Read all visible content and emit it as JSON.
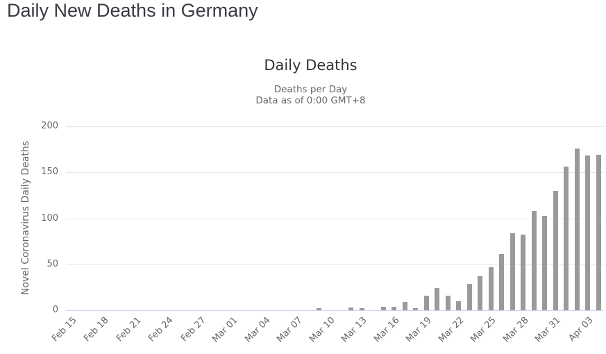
{
  "page": {
    "title": "Daily New Deaths in Germany"
  },
  "chart": {
    "title": "Daily Deaths",
    "subtitle_line1": "Deaths per Day",
    "subtitle_line2": "Data as of 0:00 GMT+8",
    "y_axis_title": "Novel Coronavirus Daily Deaths"
  },
  "chart_data": {
    "type": "bar",
    "title": "Daily Deaths",
    "subtitle": [
      "Deaths per Day",
      "Data as of 0:00 GMT+8"
    ],
    "xlabel": "",
    "ylabel": "Novel Coronavirus Daily Deaths",
    "ylim": [
      0,
      200
    ],
    "yticks": [
      0,
      50,
      100,
      150,
      200
    ],
    "x_tick_interval": 3,
    "grid": true,
    "legend_position": "none",
    "bar_color": "#9a9a9a",
    "gridline_color": "#e6e6e6",
    "axis_line_color": "#ccd6eb",
    "categories": [
      "Feb 15",
      "Feb 16",
      "Feb 17",
      "Feb 18",
      "Feb 19",
      "Feb 20",
      "Feb 21",
      "Feb 22",
      "Feb 23",
      "Feb 24",
      "Feb 25",
      "Feb 26",
      "Feb 27",
      "Feb 28",
      "Feb 29",
      "Mar 01",
      "Mar 02",
      "Mar 03",
      "Mar 04",
      "Mar 05",
      "Mar 06",
      "Mar 07",
      "Mar 08",
      "Mar 09",
      "Mar 10",
      "Mar 11",
      "Mar 12",
      "Mar 13",
      "Mar 14",
      "Mar 15",
      "Mar 16",
      "Mar 17",
      "Mar 18",
      "Mar 19",
      "Mar 20",
      "Mar 21",
      "Mar 22",
      "Mar 23",
      "Mar 24",
      "Mar 25",
      "Mar 26",
      "Mar 27",
      "Mar 28",
      "Mar 29",
      "Mar 30",
      "Mar 31",
      "Apr 01",
      "Apr 02",
      "Apr 03",
      "Apr 04"
    ],
    "values": [
      0,
      0,
      0,
      0,
      0,
      0,
      0,
      0,
      0,
      0,
      0,
      0,
      0,
      0,
      0,
      0,
      0,
      0,
      0,
      0,
      0,
      0,
      0,
      2,
      0,
      0,
      3,
      2,
      0,
      4,
      4,
      9,
      2,
      16,
      24,
      16,
      10,
      29,
      37,
      47,
      61,
      84,
      82,
      108,
      103,
      130,
      156,
      176,
      168,
      169
    ],
    "visible_x_tick_labels": [
      "Feb 15",
      "Feb 18",
      "Feb 21",
      "Feb 24",
      "Feb 27",
      "Mar 01",
      "Mar 04",
      "Mar 07",
      "Mar 10",
      "Mar 13",
      "Mar 16",
      "Mar 19",
      "Mar 22",
      "Mar 25",
      "Mar 28",
      "Mar 31",
      "Apr 03"
    ]
  }
}
